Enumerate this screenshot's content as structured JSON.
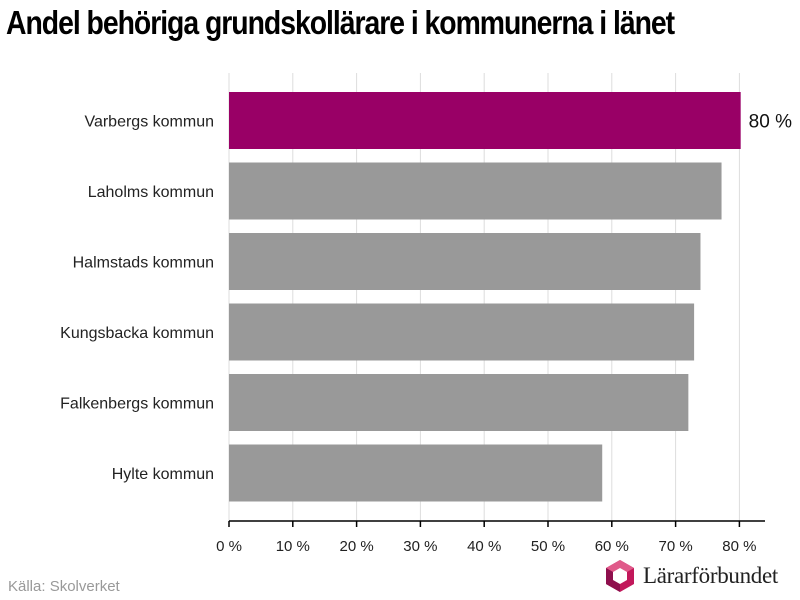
{
  "chart_data": {
    "type": "bar",
    "orientation": "horizontal",
    "title": "Andel behöriga grundskollärare i kommunerna i länet",
    "categories": [
      "Varbergs kommun",
      "Laholms kommun",
      "Halmstads kommun",
      "Kungsbacka kommun",
      "Falkenbergs kommun",
      "Hylte kommun"
    ],
    "values": [
      80.2,
      77.2,
      73.9,
      72.9,
      72.0,
      58.5
    ],
    "highlight_index": 0,
    "data_labels": [
      "80 %"
    ],
    "x_ticks": [
      "0 %",
      "10 %",
      "20 %",
      "30 %",
      "40 %",
      "50 %",
      "60 %",
      "70 %",
      "80 %"
    ],
    "xlim": [
      0,
      84
    ],
    "grid": true,
    "colors": {
      "highlight": "#990066",
      "default": "#999999",
      "grid": "#dddddd",
      "axis": "#000000"
    }
  },
  "footer": {
    "source": "Källa: Skolverket",
    "logo_text": "Lärarförbundet"
  }
}
